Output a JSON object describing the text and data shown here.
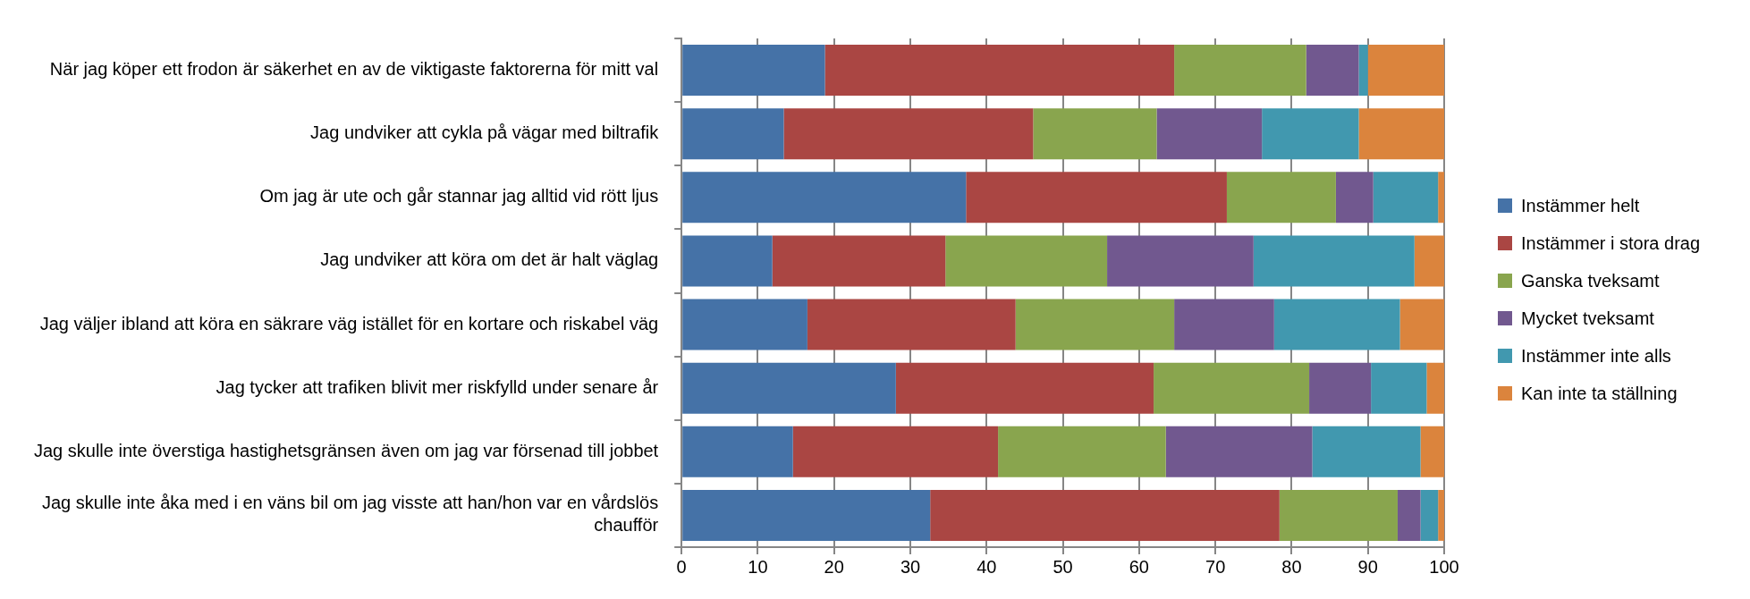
{
  "chart_data": {
    "type": "bar",
    "orientation": "horizontal",
    "stacked": true,
    "categories": [
      "När jag köper ett frodon är säkerhet en av de viktigaste faktorerna för mitt val",
      "Jag undviker att cykla på vägar med biltrafik",
      "Om jag är ute och går stannar jag alltid vid rött ljus",
      "Jag undviker att köra om det är halt väglag",
      "Jag väljer ibland att köra en säkrare väg istället för en kortare och riskabel väg",
      "Jag tycker att trafiken blivit mer riskfylld under senare år",
      "Jag skulle inte överstiga hastighetsgränsen även om jag var försenad till jobbet",
      "Jag skulle inte åka med i en väns bil om jag visste att han/hon var en vårdslös chaufför"
    ],
    "series": [
      {
        "name": "Instämmer helt",
        "color": "#4572a7",
        "values": [
          18.8,
          13.4,
          37.3,
          11.9,
          16.5,
          28.1,
          14.6,
          32.6
        ]
      },
      {
        "name": "Instämmer i stora drag",
        "color": "#aa4643",
        "values": [
          45.8,
          32.7,
          34.2,
          22.7,
          27.3,
          33.8,
          26.9,
          45.8
        ]
      },
      {
        "name": "Ganska tveksamt",
        "color": "#89a54e",
        "values": [
          17.3,
          16.2,
          14.3,
          21.2,
          20.8,
          20.4,
          22.0,
          15.5
        ]
      },
      {
        "name": "Mycket tveksamt",
        "color": "#71588f",
        "values": [
          6.9,
          13.8,
          4.9,
          19.2,
          13.1,
          8.1,
          19.2,
          3.0
        ]
      },
      {
        "name": "Instämmer inte alls",
        "color": "#4198af",
        "values": [
          1.2,
          12.7,
          8.5,
          21.1,
          16.5,
          7.3,
          14.2,
          2.3
        ]
      },
      {
        "name": "Kan inte ta ställning",
        "color": "#db843d",
        "values": [
          10.0,
          11.2,
          0.8,
          3.9,
          5.8,
          2.3,
          3.1,
          0.8
        ]
      }
    ],
    "xlim": [
      0,
      100
    ],
    "xticks": [
      0,
      10,
      20,
      30,
      40,
      50,
      60,
      70,
      80,
      90,
      100
    ],
    "grid": "x",
    "legend": "right"
  }
}
